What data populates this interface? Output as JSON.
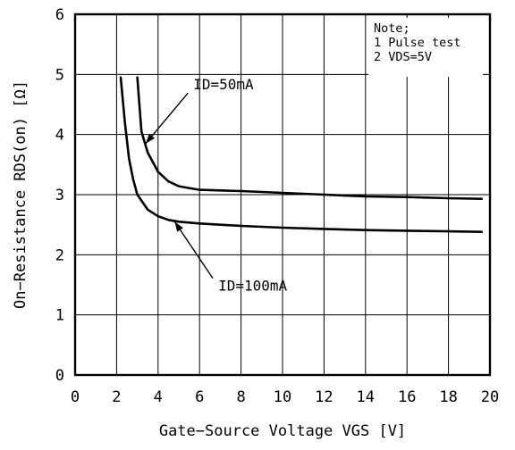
{
  "chart_data": {
    "type": "line",
    "xlabel": "Gate−Source Voltage VGS [V]",
    "ylabel": "On−Resistance RDS(on) [Ω]",
    "xlim": [
      0,
      20
    ],
    "ylim": [
      0,
      6
    ],
    "xticks": [
      "0",
      "2",
      "4",
      "6",
      "8",
      "10",
      "12",
      "14",
      "16",
      "18",
      "20"
    ],
    "yticks": [
      "0",
      "1",
      "2",
      "3",
      "4",
      "5",
      "6"
    ],
    "grid": true,
    "note": [
      "Note;",
      "1 Pulse test",
      "2 VDS=5V"
    ],
    "series": [
      {
        "name": "ID=50mA",
        "x": [
          3.0,
          3.2,
          3.5,
          4.0,
          4.5,
          5.0,
          6.0,
          8.0,
          10.0,
          12.0,
          14.0,
          16.0,
          18.0,
          19.6
        ],
        "y": [
          4.95,
          4.05,
          3.7,
          3.38,
          3.22,
          3.14,
          3.08,
          3.06,
          3.03,
          3.0,
          2.97,
          2.96,
          2.94,
          2.93
        ]
      },
      {
        "name": "ID=100mA",
        "x": [
          2.2,
          2.4,
          2.6,
          2.8,
          3.0,
          3.5,
          4.0,
          4.5,
          5.0,
          6.0,
          8.0,
          10.0,
          12.0,
          14.0,
          16.0,
          18.0,
          19.6
        ],
        "y": [
          4.95,
          4.2,
          3.6,
          3.25,
          3.0,
          2.75,
          2.64,
          2.58,
          2.55,
          2.52,
          2.48,
          2.45,
          2.43,
          2.41,
          2.4,
          2.39,
          2.38
        ]
      }
    ],
    "annotations": [
      {
        "text": "ID=50mA",
        "series": 0,
        "x": 3.4,
        "y": 3.85,
        "label_x": 5.7,
        "label_y": 4.75
      },
      {
        "text": "ID=100mA",
        "series": 1,
        "x": 4.8,
        "y": 2.55,
        "label_x": 6.9,
        "label_y": 1.4
      }
    ]
  }
}
